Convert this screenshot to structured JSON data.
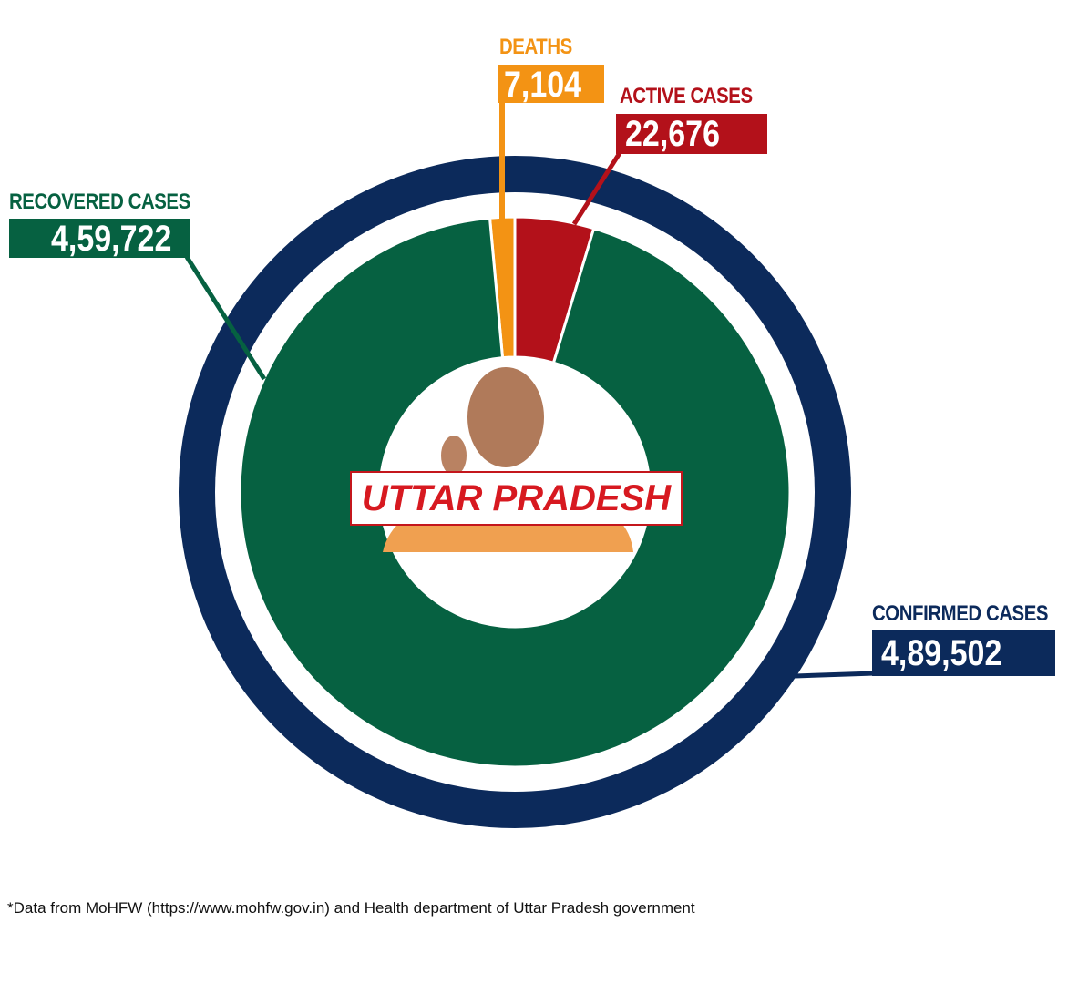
{
  "chart_data": {
    "type": "pie",
    "variant": "donut",
    "center_label": "UTTAR PRADESH",
    "outer_ring": {
      "label": "CONFIRMED CASES",
      "value": 489502,
      "display": "4,89,502",
      "color": "#0c2a5b"
    },
    "slices": [
      {
        "label": "DEATHS",
        "value": 7104,
        "display": "7,104",
        "color": "#f39314"
      },
      {
        "label": "ACTIVE CASES",
        "value": 22676,
        "display": "22,676",
        "color": "#b3111a"
      },
      {
        "label": "RECOVERED CASES",
        "value": 459722,
        "display": "4,59,722",
        "color": "#066141"
      }
    ],
    "footnote": "*Data from MoHFW (https://www.mohfw.gov.in) and Health department of Uttar Pradesh government"
  }
}
